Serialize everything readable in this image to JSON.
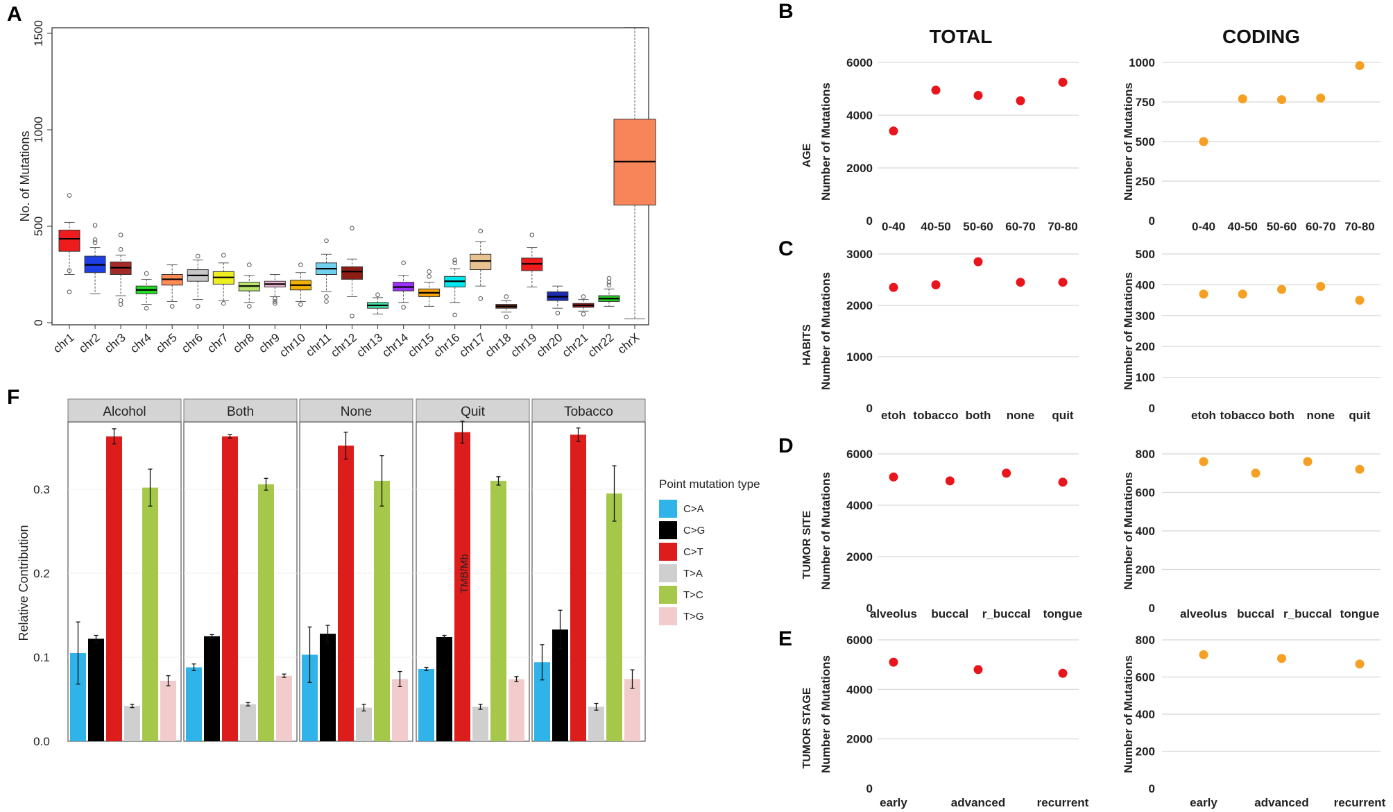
{
  "panels": {
    "A": "A",
    "B": "B",
    "C": "C",
    "D": "D",
    "E": "E",
    "F": "F"
  },
  "colors": {
    "red_dot": "#e8151c",
    "orange_dot": "#f5a022",
    "grid": "#d8d8d8"
  },
  "chart_data": [
    {
      "id": "A",
      "type": "box",
      "ylabel": "No. of Mutations",
      "ylim": [
        0,
        1550
      ],
      "yticks": [
        "0",
        "500",
        "1000",
        "1500"
      ],
      "categories": [
        "chr1",
        "chr2",
        "chr3",
        "chr4",
        "chr5",
        "chr6",
        "chr7",
        "chr8",
        "chr9",
        "chr10",
        "chr11",
        "chr12",
        "chr13",
        "chr14",
        "chr15",
        "chr16",
        "chr17",
        "chr18",
        "chr19",
        "chr20",
        "chr21",
        "chr22",
        "chrX"
      ],
      "boxes": [
        {
          "median": 435,
          "q1": 370,
          "q3": 480,
          "lo": 250,
          "hi": 520,
          "color": "#ee1c1c",
          "outliers": [
            660,
            270,
            160
          ]
        },
        {
          "median": 300,
          "q1": 260,
          "q3": 345,
          "lo": 150,
          "hi": 390,
          "color": "#1f3fe6",
          "outliers": [
            505,
            415,
            430
          ]
        },
        {
          "median": 285,
          "q1": 250,
          "q3": 315,
          "lo": 140,
          "hi": 350,
          "color": "#a52a2a",
          "outliers": [
            455,
            380,
            115,
            95
          ]
        },
        {
          "median": 170,
          "q1": 150,
          "q3": 190,
          "lo": 95,
          "hi": 225,
          "color": "#22dd22",
          "outliers": [
            75,
            255
          ]
        },
        {
          "median": 225,
          "q1": 195,
          "q3": 250,
          "lo": 110,
          "hi": 300,
          "color": "#ff8c55",
          "outliers": [
            85
          ]
        },
        {
          "median": 245,
          "q1": 215,
          "q3": 275,
          "lo": 120,
          "hi": 325,
          "color": "#c8c8c8",
          "outliers": [
            85,
            345
          ]
        },
        {
          "median": 235,
          "q1": 200,
          "q3": 265,
          "lo": 115,
          "hi": 310,
          "color": "#eeee22",
          "outliers": [
            350,
            100
          ]
        },
        {
          "median": 190,
          "q1": 165,
          "q3": 210,
          "lo": 105,
          "hi": 245,
          "color": "#b9e36b",
          "outliers": [
            300,
            85
          ]
        },
        {
          "median": 200,
          "q1": 185,
          "q3": 215,
          "lo": 135,
          "hi": 250,
          "color": "#f2b6d6",
          "outliers": [
            125,
            110,
            100
          ]
        },
        {
          "median": 195,
          "q1": 170,
          "q3": 220,
          "lo": 110,
          "hi": 260,
          "color": "#f2b100",
          "outliers": [
            95,
            300
          ]
        },
        {
          "median": 280,
          "q1": 250,
          "q3": 310,
          "lo": 160,
          "hi": 355,
          "color": "#6fd1ee",
          "outliers": [
            425,
            110,
            135
          ]
        },
        {
          "median": 265,
          "q1": 225,
          "q3": 290,
          "lo": 135,
          "hi": 330,
          "color": "#8b1d14",
          "outliers": [
            490,
            35
          ]
        },
        {
          "median": 90,
          "q1": 75,
          "q3": 105,
          "lo": 45,
          "hi": 130,
          "color": "#44e8a8",
          "outliers": [
            145
          ]
        },
        {
          "median": 185,
          "q1": 165,
          "q3": 210,
          "lo": 105,
          "hi": 245,
          "color": "#9b30ff",
          "outliers": [
            310,
            80
          ]
        },
        {
          "median": 155,
          "q1": 135,
          "q3": 175,
          "lo": 85,
          "hi": 210,
          "color": "#f8a000",
          "outliers": [
            240,
            265
          ]
        },
        {
          "median": 215,
          "q1": 185,
          "q3": 240,
          "lo": 105,
          "hi": 280,
          "color": "#00e8ee",
          "outliers": [
            310,
            325,
            40
          ]
        },
        {
          "median": 320,
          "q1": 275,
          "q3": 355,
          "lo": 190,
          "hi": 420,
          "color": "#e8c290",
          "outliers": [
            475,
            125
          ]
        },
        {
          "median": 85,
          "q1": 75,
          "q3": 95,
          "lo": 55,
          "hi": 115,
          "color": "#7a3310",
          "outliers": [
            135,
            30
          ]
        },
        {
          "median": 305,
          "q1": 270,
          "q3": 335,
          "lo": 185,
          "hi": 390,
          "color": "#ee1c1c",
          "outliers": [
            455
          ]
        },
        {
          "median": 135,
          "q1": 115,
          "q3": 160,
          "lo": 75,
          "hi": 190,
          "color": "#1d2cb0",
          "outliers": [
            50
          ]
        },
        {
          "median": 90,
          "q1": 80,
          "q3": 100,
          "lo": 60,
          "hi": 120,
          "color": "#a01818",
          "outliers": [
            45,
            135
          ]
        },
        {
          "median": 125,
          "q1": 110,
          "q3": 140,
          "lo": 85,
          "hi": 175,
          "color": "#22cc22",
          "outliers": [
            210,
            230,
            195
          ]
        },
        {
          "median": 835,
          "q1": 610,
          "q3": 1055,
          "lo": 20,
          "hi": 1530,
          "color": "#f8845a",
          "outliers": []
        }
      ]
    },
    {
      "id": "B-total",
      "type": "scatter",
      "row_label": "AGE",
      "col_title": "TOTAL",
      "ylabel": "Number of Mutations",
      "ylim": [
        0,
        6000
      ],
      "yticks": [
        "0",
        "2000",
        "4000",
        "6000"
      ],
      "categories": [
        "0-40",
        "40-50",
        "50-60",
        "60-70",
        "70-80"
      ],
      "values": [
        3400,
        4950,
        4750,
        4550,
        5250
      ]
    },
    {
      "id": "B-coding",
      "type": "scatter",
      "col_title": "CODING",
      "ylabel": "Number of Mutations",
      "ylim": [
        0,
        1000
      ],
      "yticks": [
        "0",
        "250",
        "500",
        "750",
        "1000"
      ],
      "categories": [
        "0-40",
        "40-50",
        "50-60",
        "60-70",
        "70-80"
      ],
      "values": [
        500,
        770,
        765,
        775,
        980
      ]
    },
    {
      "id": "C-total",
      "type": "scatter",
      "row_label": "HABITS",
      "ylabel": "Number of Mutations",
      "ylim": [
        0,
        3000
      ],
      "yticks": [
        "0",
        "1000",
        "2000",
        "3000"
      ],
      "categories": [
        "etoh",
        "tobacco",
        "both",
        "none",
        "quit"
      ],
      "values": [
        2350,
        2400,
        2850,
        2450,
        2450
      ]
    },
    {
      "id": "C-coding",
      "type": "scatter",
      "ylabel": "Number of Mutations",
      "ylim": [
        0,
        500
      ],
      "yticks": [
        "0",
        "100",
        "200",
        "300",
        "400",
        "500"
      ],
      "categories": [
        "etoh",
        "tobacco",
        "both",
        "none",
        "quit"
      ],
      "values": [
        370,
        370,
        385,
        395,
        350
      ]
    },
    {
      "id": "D-total",
      "type": "scatter",
      "row_label": "TUMOR SITE",
      "ylabel": "Number of Mutations",
      "ylim": [
        0,
        6000
      ],
      "yticks": [
        "0",
        "2000",
        "4000",
        "6000"
      ],
      "categories": [
        "alveolus",
        "buccal",
        "r_buccal",
        "tongue"
      ],
      "values": [
        5100,
        4950,
        5250,
        4900
      ]
    },
    {
      "id": "D-coding",
      "type": "scatter",
      "ylabel": "Number of Mutations",
      "ylim": [
        0,
        800
      ],
      "yticks": [
        "0",
        "200",
        "400",
        "600",
        "800"
      ],
      "categories": [
        "alveolus",
        "buccal",
        "r_buccal",
        "tongue"
      ],
      "values": [
        760,
        700,
        760,
        720
      ]
    },
    {
      "id": "E-total",
      "type": "scatter",
      "row_label": "TUMOR STAGE",
      "ylabel": "Number of Mutations",
      "ylim": [
        0,
        6000
      ],
      "yticks": [
        "0",
        "2000",
        "4000",
        "6000"
      ],
      "categories": [
        "early",
        "advanced",
        "recurrent"
      ],
      "values": [
        5100,
        4800,
        4650
      ]
    },
    {
      "id": "E-coding",
      "type": "scatter",
      "ylabel": "Number of Mutations",
      "ylim": [
        0,
        800
      ],
      "yticks": [
        "0",
        "200",
        "400",
        "600",
        "800"
      ],
      "categories": [
        "early",
        "advanced",
        "recurrent"
      ],
      "values": [
        720,
        700,
        670
      ]
    },
    {
      "id": "F",
      "type": "bar",
      "ylabel": "Relative Contribution",
      "ylim": [
        0,
        0.38
      ],
      "yticks": [
        "0.0",
        "0.1",
        "0.2",
        "0.3"
      ],
      "legend_title": "Point mutation type",
      "mutation_types": [
        "C>A",
        "C>G",
        "C>T",
        "T>A",
        "T>C",
        "T>G"
      ],
      "mutation_colors": [
        "#2fb3e8",
        "#000000",
        "#dd1c1c",
        "#cfcfcf",
        "#a6c84a",
        "#f2cccc"
      ],
      "annotation": "TMB/Mb",
      "facets": [
        {
          "name": "Alcohol",
          "values": [
            0.105,
            0.122,
            0.363,
            0.042,
            0.302,
            0.072
          ],
          "errors": [
            0.037,
            0.004,
            0.009,
            0.002,
            0.022,
            0.006
          ]
        },
        {
          "name": "Both",
          "values": [
            0.088,
            0.125,
            0.363,
            0.044,
            0.306,
            0.078
          ],
          "errors": [
            0.004,
            0.002,
            0.002,
            0.002,
            0.007,
            0.002
          ]
        },
        {
          "name": "None",
          "values": [
            0.103,
            0.128,
            0.352,
            0.04,
            0.31,
            0.074
          ],
          "errors": [
            0.033,
            0.01,
            0.016,
            0.004,
            0.03,
            0.009
          ]
        },
        {
          "name": "Quit",
          "values": [
            0.086,
            0.124,
            0.368,
            0.041,
            0.31,
            0.074
          ],
          "errors": [
            0.002,
            0.002,
            0.013,
            0.003,
            0.005,
            0.003
          ]
        },
        {
          "name": "Tobacco",
          "values": [
            0.094,
            0.133,
            0.365,
            0.041,
            0.295,
            0.074
          ],
          "errors": [
            0.021,
            0.023,
            0.008,
            0.004,
            0.033,
            0.011
          ]
        }
      ]
    }
  ]
}
